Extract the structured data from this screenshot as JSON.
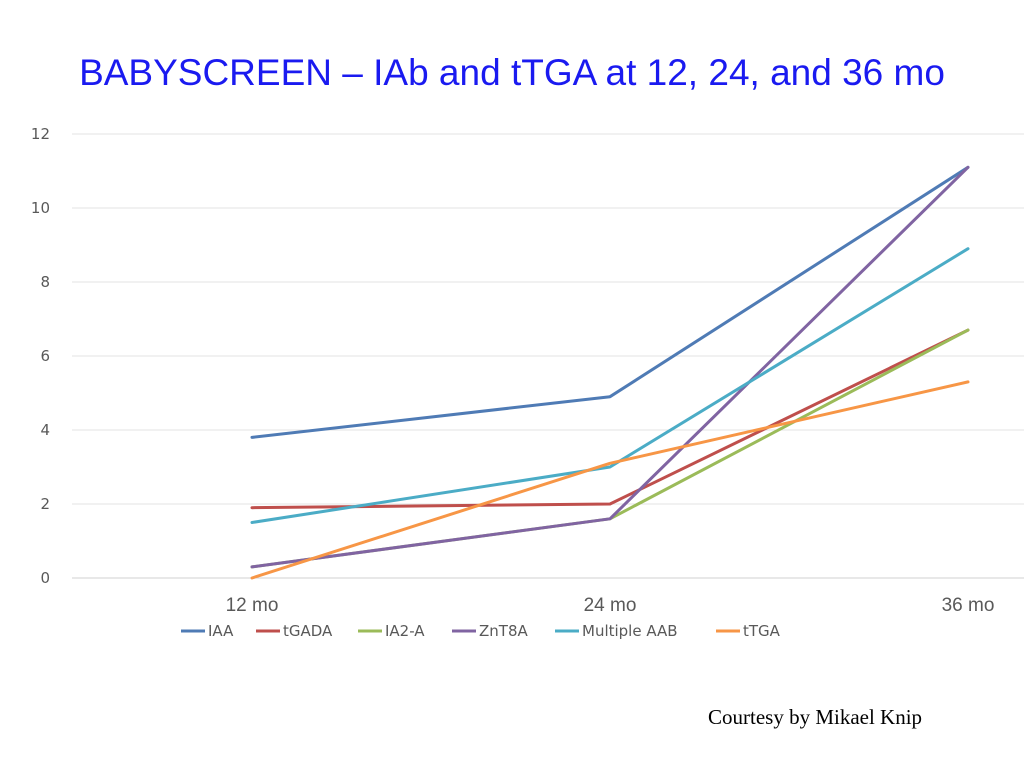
{
  "slide": {
    "title": "BABYSCREEN – IAb and tTGA at 12, 24, and 36 mo",
    "courtesy": "Courtesy by Mikael Knip"
  },
  "chart_data": {
    "type": "line",
    "categories": [
      "12 mo",
      "24 mo",
      "36 mo"
    ],
    "ylim": [
      0,
      12
    ],
    "yticks": [
      0,
      2,
      4,
      6,
      8,
      10,
      12
    ],
    "grid": true,
    "legend_position": "bottom",
    "series": [
      {
        "name": "IAA",
        "color": "#4f7bb5",
        "values": [
          3.8,
          4.9,
          11.1
        ]
      },
      {
        "name": "tGADA",
        "color": "#bf4f4c",
        "values": [
          1.9,
          2.0,
          6.7
        ]
      },
      {
        "name": "IA2-A",
        "color": "#9bbb59",
        "values": [
          0.3,
          1.6,
          6.7
        ]
      },
      {
        "name": "ZnT8A",
        "color": "#8064a2",
        "values": [
          0.3,
          1.6,
          11.1
        ]
      },
      {
        "name": "Multiple AAB",
        "color": "#4bacc6",
        "values": [
          1.5,
          3.0,
          8.9
        ]
      },
      {
        "name": "tTGA",
        "color": "#f79646",
        "values": [
          0.0,
          3.1,
          5.3
        ]
      }
    ]
  }
}
